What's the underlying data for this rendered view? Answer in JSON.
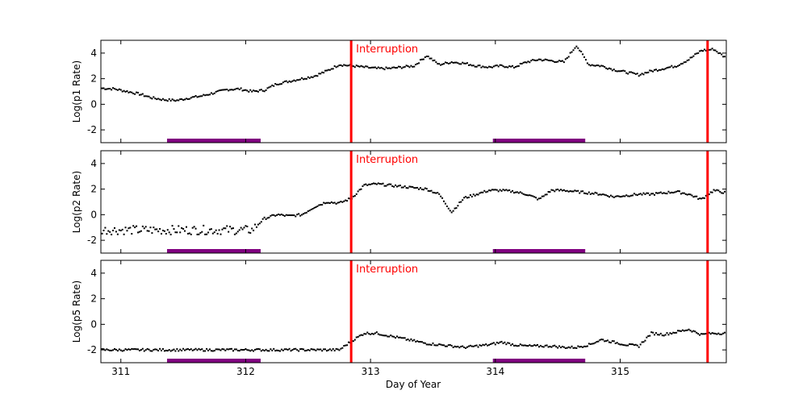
{
  "chart_data": [
    {
      "type": "scatter",
      "ylabel": "Log(p1 Rate)",
      "xlim": [
        310.84,
        315.85
      ],
      "ylim": [
        -3,
        5
      ],
      "yticks": [
        -2,
        0,
        2,
        4
      ],
      "x": [
        310.85,
        310.95,
        311.05,
        311.15,
        311.25,
        311.35,
        311.45,
        311.55,
        311.65,
        311.75,
        311.85,
        311.95,
        312.05,
        312.15,
        312.25,
        312.35,
        312.45,
        312.55,
        312.65,
        312.75,
        312.85,
        312.95,
        313.05,
        313.15,
        313.25,
        313.35,
        313.45,
        313.55,
        313.65,
        313.75,
        313.85,
        313.95,
        314.05,
        314.15,
        314.25,
        314.35,
        314.45,
        314.55,
        314.65,
        314.75,
        314.85,
        314.95,
        315.05,
        315.15,
        315.25,
        315.35,
        315.45,
        315.55,
        315.65,
        315.75,
        315.85
      ],
      "values": [
        1.25,
        1.2,
        1.0,
        0.8,
        0.5,
        0.35,
        0.3,
        0.5,
        0.65,
        0.9,
        1.15,
        1.2,
        1.0,
        1.1,
        1.6,
        1.8,
        2.0,
        2.2,
        2.6,
        3.1,
        3.0,
        2.9,
        2.8,
        2.8,
        2.9,
        3.0,
        3.8,
        3.1,
        3.3,
        3.2,
        3.0,
        2.9,
        3.0,
        2.9,
        3.3,
        3.5,
        3.4,
        3.3,
        4.6,
        3.1,
        3.0,
        2.7,
        2.5,
        2.3,
        2.6,
        2.8,
        3.0,
        3.5,
        4.2,
        4.3,
        3.6
      ],
      "interruptions": [
        312.845,
        315.7
      ],
      "annotation": "Interruption",
      "shaded_intervals": [
        [
          311.37,
          312.12
        ],
        [
          313.98,
          314.72
        ]
      ]
    },
    {
      "type": "scatter",
      "ylabel": "Log(p2 Rate)",
      "xlim": [
        310.84,
        315.85
      ],
      "ylim": [
        -3,
        5
      ],
      "yticks": [
        -2,
        0,
        2,
        4
      ],
      "x": [
        310.85,
        310.95,
        311.05,
        311.15,
        311.25,
        311.35,
        311.45,
        311.55,
        311.65,
        311.75,
        311.85,
        311.95,
        312.05,
        312.15,
        312.25,
        312.35,
        312.45,
        312.55,
        312.65,
        312.75,
        312.85,
        312.95,
        313.05,
        313.15,
        313.25,
        313.35,
        313.45,
        313.55,
        313.65,
        313.75,
        313.85,
        313.95,
        314.05,
        314.15,
        314.25,
        314.35,
        314.45,
        314.55,
        314.65,
        314.75,
        314.85,
        314.95,
        315.05,
        315.15,
        315.25,
        315.35,
        315.45,
        315.55,
        315.65,
        315.75,
        315.85
      ],
      "values": [
        -1.2,
        -1.2,
        -1.2,
        -1.2,
        -1.2,
        -1.2,
        -1.2,
        -1.2,
        -1.2,
        -1.2,
        -1.2,
        -1.2,
        -1.2,
        -0.3,
        0.0,
        -0.1,
        0.0,
        0.6,
        1.0,
        0.9,
        1.3,
        2.3,
        2.4,
        2.3,
        2.2,
        2.1,
        2.0,
        1.6,
        0.2,
        1.3,
        1.6,
        1.9,
        1.9,
        1.8,
        1.6,
        1.2,
        1.9,
        1.9,
        1.8,
        1.7,
        1.6,
        1.4,
        1.5,
        1.6,
        1.6,
        1.7,
        1.8,
        1.6,
        1.2,
        1.9,
        1.7
      ],
      "interruptions": [
        312.845,
        315.7
      ],
      "annotation": "Interruption",
      "shaded_intervals": [
        [
          311.37,
          312.12
        ],
        [
          313.98,
          314.72
        ]
      ]
    },
    {
      "type": "scatter",
      "ylabel": "Log(p5 Rate)",
      "xlabel": "Day of Year",
      "xlim": [
        310.84,
        315.85
      ],
      "ylim": [
        -3,
        5
      ],
      "yticks": [
        -2,
        0,
        2,
        4
      ],
      "xticks": [
        311,
        312,
        313,
        314,
        315
      ],
      "x": [
        310.85,
        310.95,
        311.05,
        311.15,
        311.25,
        311.35,
        311.45,
        311.55,
        311.65,
        311.75,
        311.85,
        311.95,
        312.05,
        312.15,
        312.25,
        312.35,
        312.45,
        312.55,
        312.65,
        312.75,
        312.85,
        312.95,
        313.05,
        313.15,
        313.25,
        313.35,
        313.45,
        313.55,
        313.65,
        313.75,
        313.85,
        313.95,
        314.05,
        314.15,
        314.25,
        314.35,
        314.45,
        314.55,
        314.65,
        314.75,
        314.85,
        314.95,
        315.05,
        315.15,
        315.25,
        315.35,
        315.45,
        315.55,
        315.65,
        315.75,
        315.85
      ],
      "values": [
        -2.0,
        -2.0,
        -2.0,
        -2.0,
        -2.0,
        -2.0,
        -2.0,
        -2.0,
        -2.0,
        -2.0,
        -2.0,
        -2.0,
        -2.0,
        -2.0,
        -2.0,
        -2.0,
        -2.0,
        -2.0,
        -2.0,
        -2.0,
        -1.3,
        -0.7,
        -0.7,
        -0.9,
        -1.1,
        -1.3,
        -1.5,
        -1.6,
        -1.7,
        -1.8,
        -1.7,
        -1.6,
        -1.4,
        -1.6,
        -1.7,
        -1.7,
        -1.7,
        -1.8,
        -1.8,
        -1.6,
        -1.2,
        -1.4,
        -1.6,
        -1.7,
        -0.7,
        -0.8,
        -0.6,
        -0.4,
        -0.8,
        -0.7,
        -0.7
      ],
      "interruptions": [
        312.845,
        315.7
      ],
      "annotation": "Interruption",
      "shaded_intervals": [
        [
          311.37,
          312.12
        ],
        [
          313.98,
          314.72
        ]
      ]
    }
  ],
  "colors": {
    "points": "#000000",
    "interruption": "#ff0000",
    "shaded": "#800080"
  }
}
